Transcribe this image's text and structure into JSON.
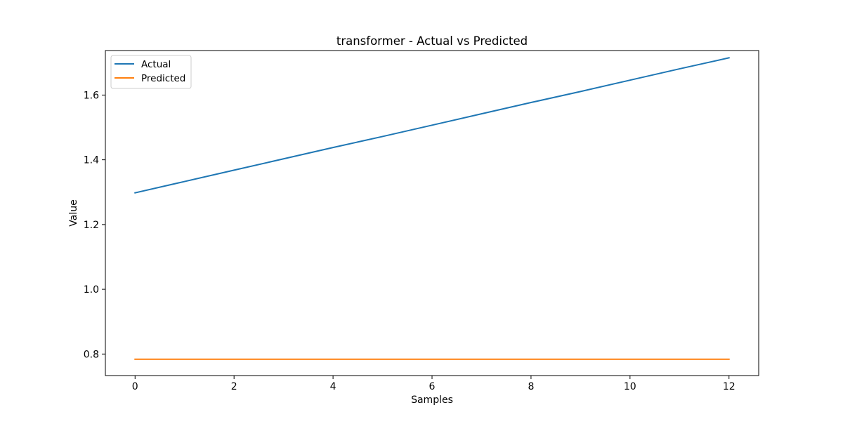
{
  "chart_data": {
    "type": "line",
    "title": "transformer - Actual vs Predicted",
    "xlabel": "Samples",
    "ylabel": "Value",
    "xlim": [
      -0.6,
      12.6
    ],
    "ylim": [
      0.7335,
      1.7375
    ],
    "xticks": [
      0,
      2,
      4,
      6,
      8,
      10,
      12
    ],
    "xtick_labels": [
      "0",
      "2",
      "4",
      "6",
      "8",
      "10",
      "12"
    ],
    "yticks": [
      0.8,
      1.0,
      1.2,
      1.4,
      1.6
    ],
    "ytick_labels": [
      "0.8",
      "1.0",
      "1.2",
      "1.4",
      "1.6"
    ],
    "x": [
      0,
      1,
      2,
      3,
      4,
      5,
      6,
      7,
      8,
      9,
      10,
      11,
      12
    ],
    "series": [
      {
        "name": "Actual",
        "color": "#1f77b4",
        "values": [
          1.298,
          1.333,
          1.368,
          1.403,
          1.438,
          1.472,
          1.507,
          1.542,
          1.577,
          1.611,
          1.646,
          1.681,
          1.715
        ]
      },
      {
        "name": "Predicted",
        "color": "#ff7f0e",
        "values": [
          0.784,
          0.784,
          0.784,
          0.784,
          0.784,
          0.784,
          0.784,
          0.784,
          0.784,
          0.784,
          0.784,
          0.784,
          0.784
        ]
      }
    ],
    "grid": false,
    "legend_position": "top-left"
  }
}
